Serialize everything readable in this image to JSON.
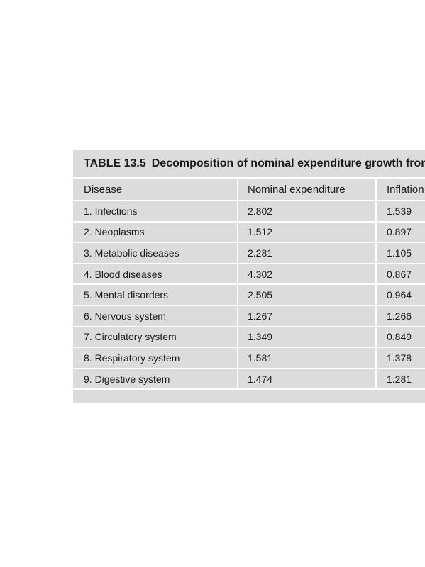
{
  "table": {
    "label": "TABLE 13.5",
    "title": "Decomposition of nominal expenditure growth from",
    "columns": [
      "Disease",
      "Nominal expenditure",
      "Inflation"
    ],
    "rows": [
      [
        "1. Infections",
        "2.802",
        "1.539"
      ],
      [
        "2. Neoplasms",
        "1.512",
        "0.897"
      ],
      [
        "3. Metabolic diseases",
        "2.281",
        "1.105"
      ],
      [
        "4. Blood diseases",
        "4.302",
        "0.867"
      ],
      [
        "5. Mental disorders",
        "2.505",
        "0.964"
      ],
      [
        "6. Nervous system",
        "1.267",
        "1.266"
      ],
      [
        "7. Circulatory system",
        "1.349",
        "0.849"
      ],
      [
        "8. Respiratory system",
        "1.581",
        "1.378"
      ],
      [
        "9. Digestive system",
        "1.474",
        "1.281"
      ]
    ]
  }
}
